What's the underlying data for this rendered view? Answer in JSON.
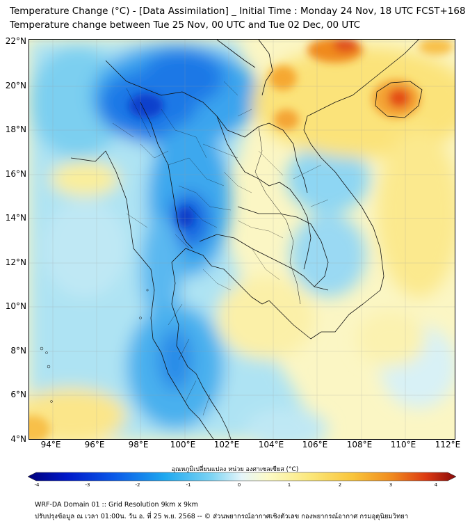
{
  "title_line1": "Temperature Change (°C) - [Data Assimilation] _ Initial Time : Monday 24 Nov, 18 UTC FCST+168",
  "title_line2": "Temperature change between Tue 25 Nov, 00 UTC and Tue 02 Dec, 00 UTC",
  "lat_labels": [
    "22°N",
    "20°N",
    "18°N",
    "16°N",
    "14°N",
    "12°N",
    "10°N",
    "8°N",
    "6°N",
    "4°N"
  ],
  "lon_labels": [
    "94°E",
    "96°E",
    "98°E",
    "100°E",
    "102°E",
    "104°E",
    "106°E",
    "108°E",
    "110°E",
    "112°E"
  ],
  "colorbar": {
    "label": "อุณหภูมิเปลี่ยนแปลง หน่วย องศาเซลเซียส (°C)",
    "ticks": [
      "-4",
      "-3",
      "-2",
      "-1",
      "0",
      "1",
      "2",
      "3",
      "4"
    ],
    "colors": [
      "#00007a",
      "#0018c8",
      "#0a58e8",
      "#1ea8ef",
      "#7ed4f4",
      "#e6f6fa",
      "#fdfbc8",
      "#fbe77a",
      "#f9c43a",
      "#f08a1e",
      "#dc3a12",
      "#8a0a0a"
    ]
  },
  "footer_line1": "WRF-DA Domain 01 :: Grid Resolution 9km x 9km",
  "footer_line2": "ปรับปรุงข้อมูล ณ เวลา 01:00น. วัน อ. ที่ 25 พ.ย. 2568 -- © ส่วนพยากรณ์อากาศเชิงตัวเลข กองพยากรณ์อากาศ กรมอุตุนิยมวิทยา"
}
